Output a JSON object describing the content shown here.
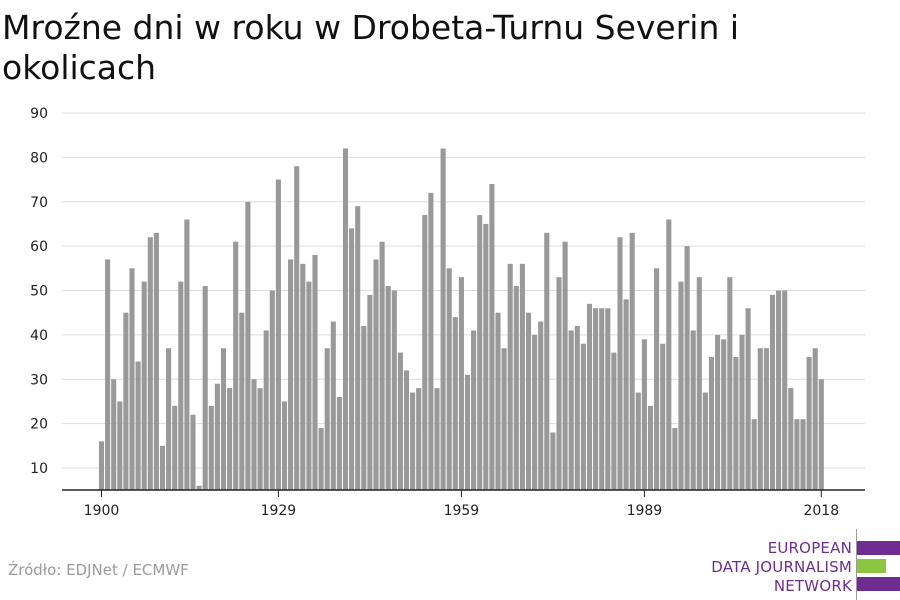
{
  "title": "Mroźne dni w roku w Drobeta-Turnu Severin i okolicach",
  "source": "Źródło: EDJNet / ECMWF",
  "logo": {
    "lines": [
      "EUROPEAN",
      "DATA JOURNALISM",
      "NETWORK"
    ],
    "colors": {
      "purple": "#6f2c91",
      "green": "#8cc63f"
    }
  },
  "colors": {
    "bar": "#999999",
    "grid": "#dddddd",
    "axis": "#222222"
  },
  "chart_data": {
    "type": "bar",
    "title": "Mroźne dni w roku w Drobeta-Turnu Severin i okolicach",
    "xlabel": "",
    "ylabel": "",
    "ylim": [
      5,
      90
    ],
    "yticks": [
      10,
      20,
      30,
      40,
      50,
      60,
      70,
      80,
      90
    ],
    "xticks": [
      1900,
      1929,
      1959,
      1989,
      2018
    ],
    "grid": true,
    "years": [
      1900,
      2018
    ],
    "values": [
      16,
      57,
      30,
      25,
      45,
      55,
      34,
      52,
      62,
      63,
      15,
      37,
      24,
      52,
      66,
      22,
      6,
      51,
      24,
      29,
      37,
      28,
      61,
      45,
      70,
      30,
      28,
      41,
      50,
      75,
      25,
      57,
      78,
      56,
      52,
      58,
      19,
      37,
      43,
      26,
      82,
      64,
      69,
      42,
      49,
      57,
      61,
      51,
      50,
      36,
      32,
      27,
      28,
      67,
      72,
      28,
      82,
      55,
      44,
      53,
      31,
      41,
      67,
      65,
      74,
      45,
      37,
      56,
      51,
      56,
      45,
      40,
      43,
      63,
      18,
      53,
      61,
      41,
      42,
      38,
      47,
      46,
      46,
      46,
      36,
      62,
      48,
      63,
      27,
      39,
      24,
      55,
      38,
      66,
      19,
      52,
      60,
      41,
      53,
      27,
      35,
      40,
      39,
      53,
      35,
      40,
      46,
      21,
      37,
      37,
      49,
      50,
      50,
      28,
      21,
      21,
      35,
      37,
      30
    ]
  }
}
